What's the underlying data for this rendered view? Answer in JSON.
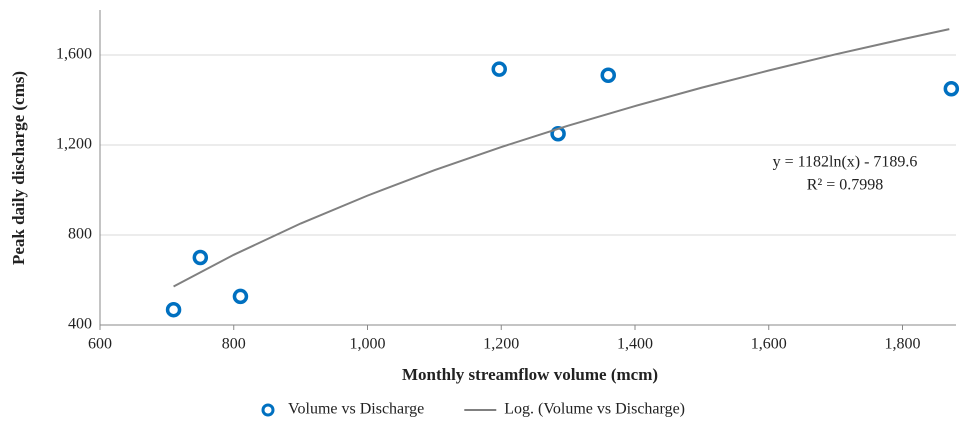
{
  "chart_data": {
    "type": "scatter",
    "x_label": "Monthly streamflow volume (mcm)",
    "y_label": "Peak daily discharge (cms)",
    "xlim": [
      600,
      1880
    ],
    "ylim": [
      400,
      1800
    ],
    "xticks": [
      600,
      800,
      {
        "value": 1000,
        "label": "1,000"
      },
      {
        "value": 1200,
        "label": "1,200"
      },
      {
        "value": 1400,
        "label": "1,400"
      },
      {
        "value": 1600,
        "label": "1,600"
      },
      {
        "value": 1800,
        "label": "1,800"
      }
    ],
    "yticks": [
      400,
      800,
      {
        "value": 1200,
        "label": "1,200"
      },
      {
        "value": 1600,
        "label": "1,600"
      }
    ],
    "grid": true,
    "legend": "bottom",
    "annotations": [
      "y = 1182ln(x) - 7189.6",
      "R² = 0.7998"
    ],
    "series": [
      {
        "name": "Volume vs Discharge",
        "color": "#0070c0",
        "mark": "marker",
        "x": [
          710,
          750,
          810,
          1197,
          1285,
          1360,
          1873
        ],
        "values": [
          468,
          700,
          527,
          1537,
          1250,
          1510,
          1450
        ]
      },
      {
        "name": "Log. (Volume vs Discharge)",
        "color": "#808080",
        "mark": "line",
        "x": [
          710,
          800,
          900,
          1000,
          1100,
          1200,
          1300,
          1400,
          1500,
          1600,
          1700,
          1800,
          1870
        ],
        "values": [
          571,
          712,
          851,
          975,
          1088,
          1191,
          1286,
          1373,
          1455,
          1531,
          1603,
          1670,
          1715
        ]
      }
    ]
  }
}
